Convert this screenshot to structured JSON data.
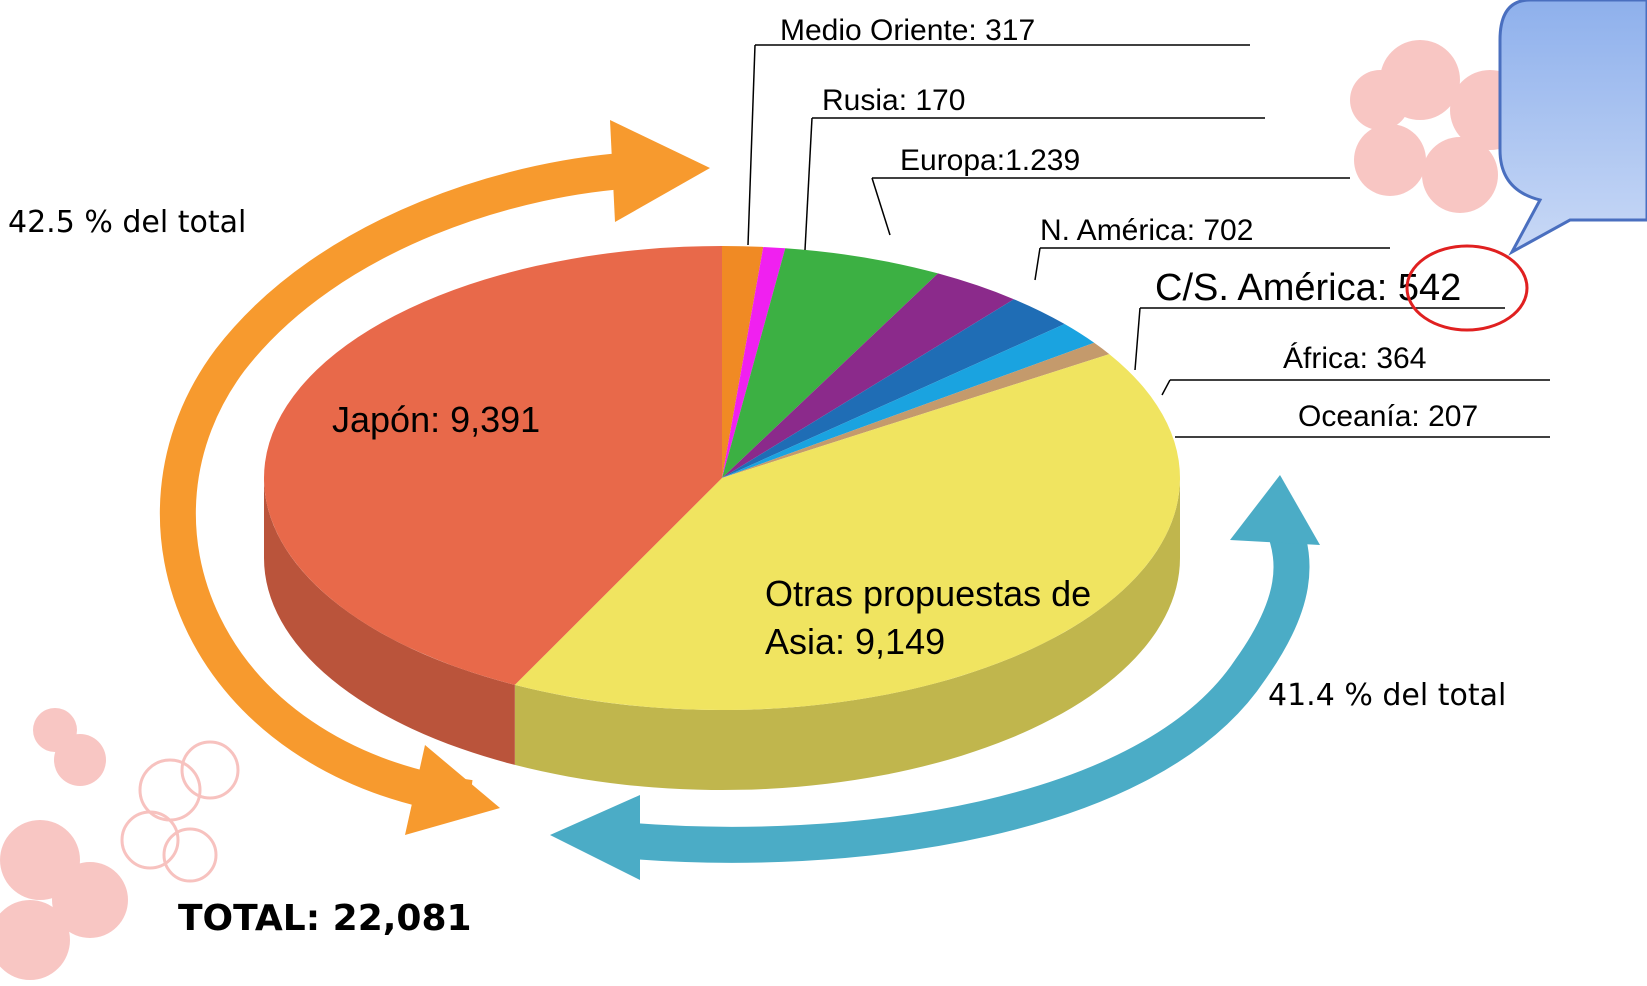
{
  "chart_data": {
    "type": "pie",
    "values": [
      317,
      170,
      1239,
      702,
      542,
      364,
      207,
      9149,
      9391
    ],
    "value_labels": [
      "Medio Oriente: 317",
      "Rusia: 170",
      "Europa:1.239",
      "N. América: 702",
      "C/S. América: 542",
      "África: 364",
      "Oceanía: 207",
      "Otras propuestas de Asia: 9,149",
      "Japón: 9,391"
    ],
    "colors": [
      "#f08a24",
      "#f020f0",
      "#3cb043",
      "#8b2a8b",
      "#1f6db5",
      "#1aa3e0",
      "#c49a6c",
      "#f0e460",
      "#e8694a"
    ],
    "annotations": [
      "42.5 % del total",
      "41.4 % del total",
      "TOTAL: 22,081"
    ]
  }
}
